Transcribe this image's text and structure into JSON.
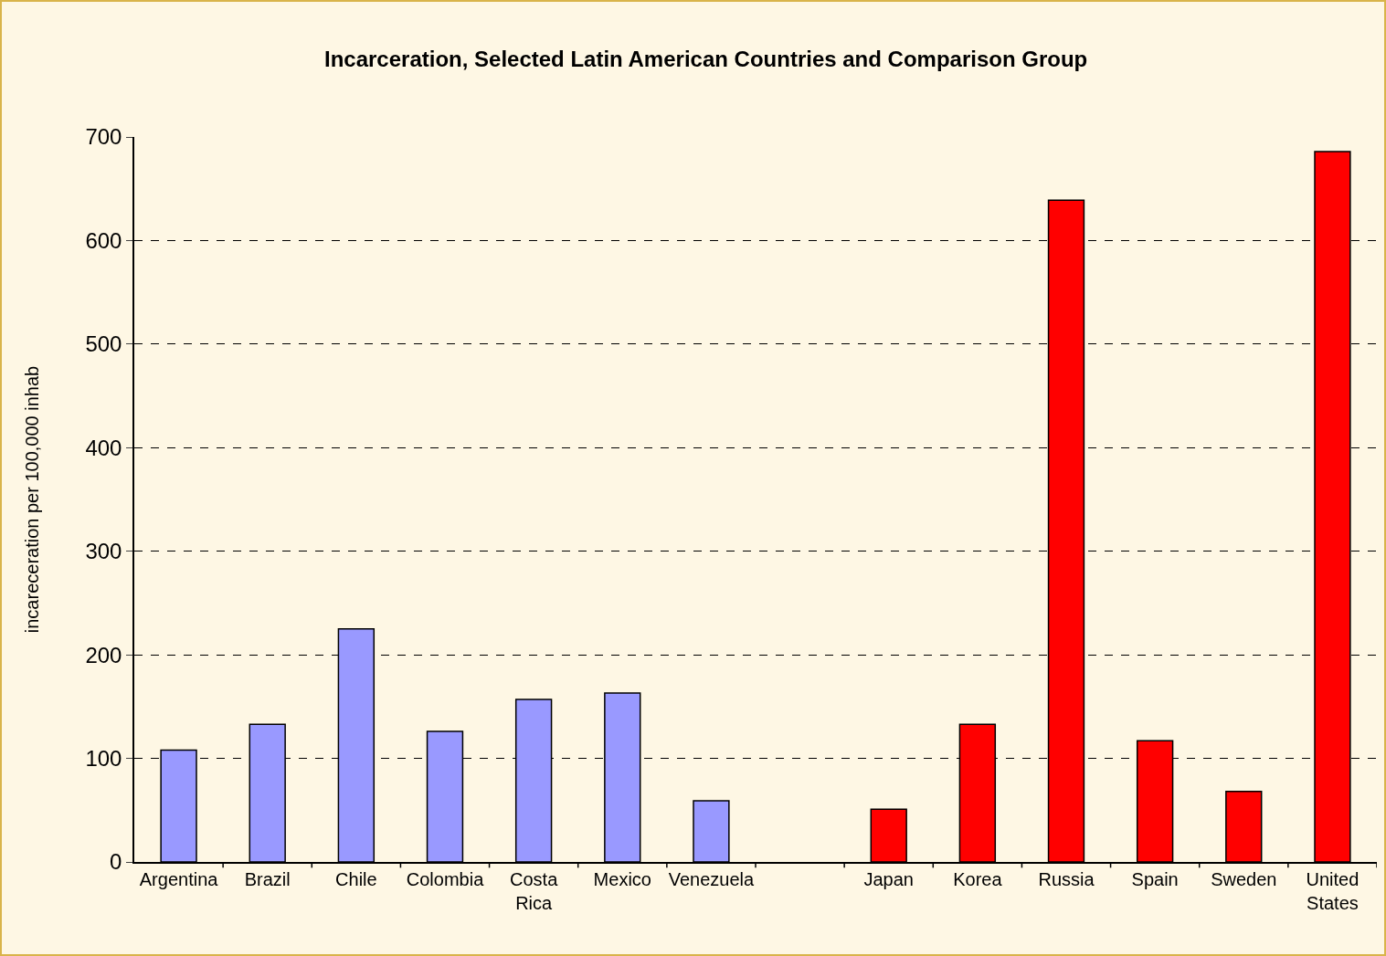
{
  "chart_data": {
    "type": "bar",
    "title": "Incarceration, Selected Latin American Countries and Comparison Group",
    "ylabel": "incareceration per 100,000 inhab",
    "categories": [
      "Argentina",
      "Brazil",
      "Chile",
      "Colombia",
      "Costa Rica",
      "Mexico",
      "Venezuela",
      null,
      "Japan",
      "Korea",
      "Russia",
      "Spain",
      "Sweden",
      "United States"
    ],
    "values": [
      108,
      133,
      225,
      126,
      157,
      163,
      59,
      null,
      51,
      133,
      639,
      117,
      68,
      686
    ],
    "colors": [
      "#9999ff",
      "#9999ff",
      "#9999ff",
      "#9999ff",
      "#9999ff",
      "#9999ff",
      "#9999ff",
      "#9999ff",
      "#ff0000",
      "#ff0000",
      "#ff0000",
      "#ff0000",
      "#ff0000",
      "#ff0000"
    ],
    "ylim": [
      0,
      700
    ],
    "yticks": [
      0,
      100,
      200,
      300,
      400,
      500,
      600,
      700
    ],
    "grid": "y",
    "legend": false
  }
}
